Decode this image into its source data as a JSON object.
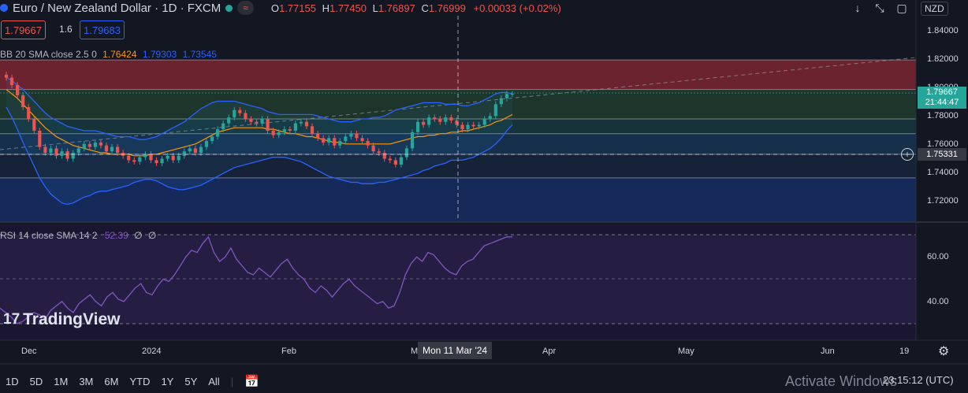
{
  "header": {
    "symbol_title": "Euro / New Zealand Dollar · 1D · FXCM",
    "open_label": "O",
    "open": "1.77155",
    "high_label": "H",
    "high": "1.77450",
    "low_label": "L",
    "low": "1.76897",
    "close_label": "C",
    "close": "1.76999",
    "change": "+0.00033 (+0.02%)"
  },
  "bid_price": "1.79667",
  "spread": "1.6",
  "ask_price": "1.79683",
  "currency": "NZD",
  "indicators": {
    "bb_name": "BB 20 SMA close 2.5 0",
    "bb_basis": "1.76424",
    "bb_upper": "1.79303",
    "bb_lower": "1.73545",
    "rsi_name": "RSI 14 close SMA 14 2",
    "rsi_value": "52.39",
    "rsi_extra1": "∅",
    "rsi_extra2": "∅"
  },
  "price_axis": {
    "ticks": [
      "1.84000",
      "1.82000",
      "1.80000",
      "1.78000",
      "1.76000",
      "1.74000",
      "1.72000"
    ],
    "last_price": "1.79667",
    "countdown": "21:44:47",
    "crosshair_price": "1.75331"
  },
  "rsi_axis": {
    "ticks": [
      "60.00",
      "40.00"
    ]
  },
  "time_axis": {
    "ticks": [
      "Dec",
      "2024",
      "Feb",
      "M",
      "Apr",
      "May",
      "Jun",
      "19"
    ],
    "crosshair_date": "Mon 11 Mar '24"
  },
  "timeframes": [
    "1D",
    "5D",
    "1M",
    "3M",
    "6M",
    "YTD",
    "1Y",
    "5Y",
    "All"
  ],
  "clock": "23:15:12 (UTC)",
  "watermark": "TradingView",
  "activate_windows": "Activate Windows",
  "colors": {
    "bg": "#131722",
    "up": "#26a69a",
    "down": "#ef5350",
    "bb_upper": "#2962ff",
    "bb_basis": "#ff9800",
    "rsi": "#7e57c2"
  },
  "chart_data": {
    "type": "candlestick",
    "title": "Euro / New Zealand Dollar · 1D · FXCM",
    "ylim": [
      1.71,
      1.85
    ],
    "rsi_ylim": [
      20,
      80
    ],
    "zones": [
      {
        "from": 1.8,
        "to": 1.82,
        "color": "#f2364566"
      },
      {
        "from": 1.78,
        "to": 1.8,
        "color": "#4caf5033"
      },
      {
        "from": 1.77,
        "to": 1.78,
        "color": "#26a69a33"
      },
      {
        "from": 1.756,
        "to": 1.77,
        "color": "#2196f333"
      },
      {
        "from": 1.74,
        "to": 1.756,
        "color": "#1e3a5f55"
      },
      {
        "from": 1.71,
        "to": 1.74,
        "color": "#1a3c8a88"
      }
    ],
    "hlines": [
      1.82,
      1.8,
      1.78,
      1.77,
      1.756,
      1.74
    ],
    "closes": [
      1.808,
      1.803,
      1.796,
      1.788,
      1.78,
      1.772,
      1.761,
      1.757,
      1.76,
      1.755,
      1.758,
      1.753,
      1.757,
      1.76,
      1.763,
      1.761,
      1.764,
      1.762,
      1.758,
      1.761,
      1.757,
      1.755,
      1.752,
      1.751,
      1.754,
      1.756,
      1.752,
      1.75,
      1.753,
      1.755,
      1.752,
      1.755,
      1.758,
      1.76,
      1.757,
      1.761,
      1.765,
      1.768,
      1.773,
      1.777,
      1.781,
      1.786,
      1.784,
      1.78,
      1.778,
      1.777,
      1.78,
      1.772,
      1.769,
      1.771,
      1.773,
      1.772,
      1.777,
      1.778,
      1.775,
      1.77,
      1.767,
      1.764,
      1.767,
      1.762,
      1.765,
      1.768,
      1.77,
      1.767,
      1.765,
      1.762,
      1.758,
      1.757,
      1.753,
      1.752,
      1.749,
      1.754,
      1.76,
      1.771,
      1.778,
      1.776,
      1.781,
      1.78,
      1.778,
      1.781,
      1.779,
      1.776,
      1.773,
      1.776,
      1.775,
      1.776,
      1.78,
      1.782,
      1.79,
      1.794,
      1.797,
      1.797
    ],
    "bb_upper": [
      1.808,
      1.806,
      1.803,
      1.8,
      1.796,
      1.792,
      1.788,
      1.784,
      1.781,
      1.779,
      1.777,
      1.775,
      1.774,
      1.773,
      1.772,
      1.772,
      1.772,
      1.771,
      1.77,
      1.769,
      1.768,
      1.768,
      1.768,
      1.767,
      1.766,
      1.766,
      1.767,
      1.768,
      1.77,
      1.772,
      1.774,
      1.776,
      1.778,
      1.781,
      1.784,
      1.787,
      1.789,
      1.791,
      1.792,
      1.792,
      1.792,
      1.792,
      1.791,
      1.79,
      1.789,
      1.788,
      1.787,
      1.785,
      1.784,
      1.783,
      1.783,
      1.783,
      1.783,
      1.783,
      1.783,
      1.783,
      1.782,
      1.781,
      1.78,
      1.779,
      1.778,
      1.778,
      1.778,
      1.779,
      1.78,
      1.78,
      1.781,
      1.781,
      1.782,
      1.784,
      1.786,
      1.787,
      1.788,
      1.789,
      1.79,
      1.791,
      1.791,
      1.791,
      1.791,
      1.79,
      1.79,
      1.79,
      1.789,
      1.789,
      1.79,
      1.791,
      1.793,
      1.795,
      1.797,
      1.798,
      1.798,
      1.797
    ],
    "bb_basis": [
      1.8,
      1.797,
      1.794,
      1.79,
      1.786,
      1.782,
      1.778,
      1.774,
      1.771,
      1.768,
      1.766,
      1.764,
      1.762,
      1.761,
      1.76,
      1.759,
      1.758,
      1.757,
      1.757,
      1.756,
      1.756,
      1.756,
      1.756,
      1.755,
      1.755,
      1.755,
      1.756,
      1.756,
      1.757,
      1.758,
      1.759,
      1.76,
      1.761,
      1.762,
      1.763,
      1.765,
      1.767,
      1.769,
      1.771,
      1.772,
      1.773,
      1.774,
      1.774,
      1.774,
      1.774,
      1.774,
      1.774,
      1.773,
      1.773,
      1.772,
      1.771,
      1.77,
      1.77,
      1.769,
      1.768,
      1.768,
      1.767,
      1.766,
      1.765,
      1.764,
      1.764,
      1.763,
      1.763,
      1.763,
      1.763,
      1.763,
      1.763,
      1.763,
      1.763,
      1.763,
      1.764,
      1.765,
      1.766,
      1.767,
      1.768,
      1.768,
      1.769,
      1.769,
      1.77,
      1.77,
      1.771,
      1.771,
      1.772,
      1.772,
      1.773,
      1.774,
      1.775,
      1.776,
      1.778,
      1.779,
      1.781,
      1.783
    ],
    "bb_lower": [
      1.788,
      1.781,
      1.773,
      1.764,
      1.756,
      1.748,
      1.74,
      1.734,
      1.729,
      1.726,
      1.723,
      1.722,
      1.723,
      1.725,
      1.727,
      1.728,
      1.73,
      1.731,
      1.731,
      1.732,
      1.733,
      1.734,
      1.735,
      1.737,
      1.738,
      1.739,
      1.739,
      1.738,
      1.736,
      1.734,
      1.733,
      1.732,
      1.732,
      1.733,
      1.734,
      1.735,
      1.737,
      1.739,
      1.741,
      1.743,
      1.745,
      1.747,
      1.748,
      1.749,
      1.75,
      1.751,
      1.752,
      1.753,
      1.754,
      1.754,
      1.754,
      1.753,
      1.752,
      1.751,
      1.749,
      1.747,
      1.745,
      1.743,
      1.741,
      1.74,
      1.739,
      1.738,
      1.737,
      1.737,
      1.736,
      1.736,
      1.736,
      1.737,
      1.737,
      1.738,
      1.739,
      1.74,
      1.741,
      1.742,
      1.743,
      1.745,
      1.746,
      1.748,
      1.749,
      1.75,
      1.752,
      1.752,
      1.752,
      1.753,
      1.754,
      1.756,
      1.758,
      1.76,
      1.763,
      1.767,
      1.772,
      1.776
    ],
    "rsi": [
      37,
      35,
      33,
      30,
      31,
      33,
      35,
      34,
      32,
      36,
      38,
      40,
      37,
      35,
      39,
      41,
      43,
      40,
      38,
      42,
      44,
      41,
      40,
      43,
      46,
      48,
      44,
      43,
      47,
      50,
      49,
      52,
      56,
      60,
      63,
      62,
      66,
      69,
      62,
      58,
      60,
      64,
      59,
      56,
      53,
      52,
      55,
      53,
      51,
      54,
      57,
      59,
      55,
      52,
      50,
      46,
      44,
      47,
      45,
      42,
      45,
      48,
      50,
      47,
      45,
      43,
      41,
      39,
      40,
      37,
      38,
      44,
      52,
      57,
      60,
      58,
      62,
      61,
      58,
      55,
      53,
      52,
      56,
      58,
      59,
      62,
      65,
      66,
      67,
      68,
      69,
      69
    ],
    "rsi_upper_band": 70,
    "rsi_lower_band": 30,
    "trendline_label": "dashed trendline"
  }
}
